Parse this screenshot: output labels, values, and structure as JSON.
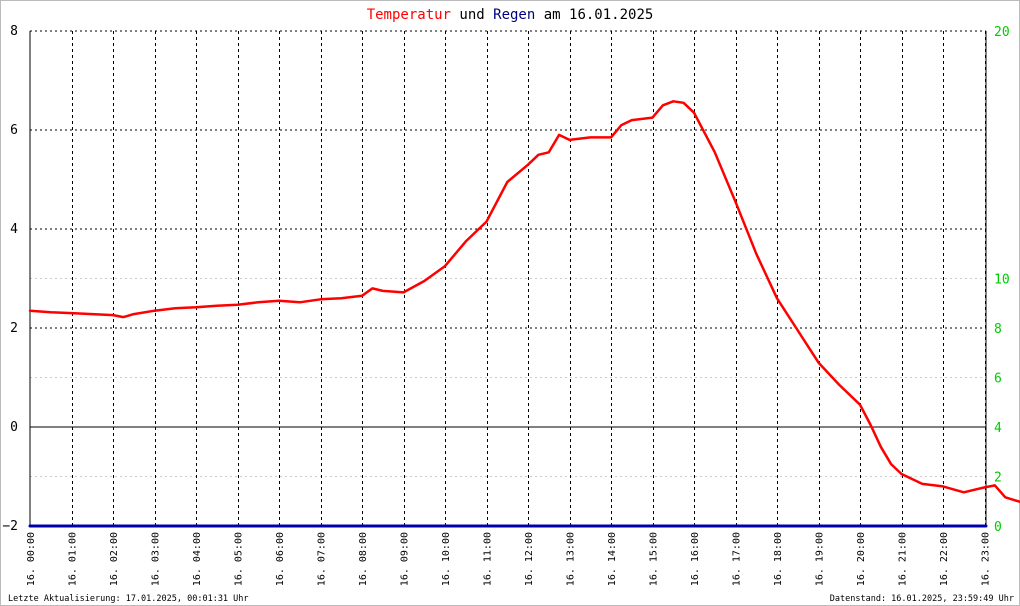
{
  "title": {
    "part1": "Temperatur",
    "part2": " und ",
    "part3": "Regen",
    "part4": " am 16.01.2025"
  },
  "footer": {
    "left": "Letzte Aktualisierung: 17.01.2025, 00:01:31 Uhr",
    "right": "Datenstand: 16.01.2025, 23:59:49 Uhr"
  },
  "colors": {
    "temperature": "#ff0000",
    "rain": "#0000aa",
    "right_axis": "#00cc00",
    "title_temperature": "#ff0000",
    "title_rain": "#000080"
  },
  "chart_data": {
    "type": "line",
    "title": "Temperatur und Regen am 16.01.2025",
    "x_tick_labels": [
      "16. 00:00",
      "16. 01:00",
      "16. 02:00",
      "16. 03:00",
      "16. 04:00",
      "16. 05:00",
      "16. 06:00",
      "16. 07:00",
      "16. 08:00",
      "16. 09:00",
      "16. 10:00",
      "16. 11:00",
      "16. 12:00",
      "16. 13:00",
      "16. 14:00",
      "16. 15:00",
      "16. 16:00",
      "16. 17:00",
      "16. 18:00",
      "16. 19:00",
      "16. 20:00",
      "16. 21:00",
      "16. 22:00",
      "16. 23:00"
    ],
    "y_left": {
      "ylim": [
        -2,
        8
      ],
      "ticks": [
        -2,
        0,
        2,
        4,
        6,
        8
      ]
    },
    "y_right": {
      "ylim": [
        0,
        20
      ],
      "ticks": [
        0,
        2,
        4,
        6,
        8,
        10,
        20
      ]
    },
    "grid": true,
    "series": [
      {
        "name": "Temperatur",
        "axis": "left",
        "x": [
          0,
          0.5,
          1,
          1.5,
          2,
          2.25,
          2.5,
          3,
          3.5,
          4,
          4.5,
          5,
          5.5,
          6,
          6.5,
          7,
          7.5,
          8,
          8.25,
          8.5,
          9,
          9.5,
          10,
          10.5,
          11,
          11.5,
          12,
          12.25,
          12.5,
          12.75,
          13,
          13.5,
          14,
          14.25,
          14.5,
          15,
          15.25,
          15.5,
          15.75,
          16,
          16.5,
          17,
          17.5,
          18,
          18.5,
          19,
          19.5,
          20,
          20.25,
          20.5,
          20.75,
          21,
          21.5,
          22,
          22.5,
          23,
          23.25,
          23.5,
          24
        ],
        "values": [
          2.35,
          2.32,
          2.3,
          2.28,
          2.26,
          2.22,
          2.28,
          2.35,
          2.4,
          2.42,
          2.45,
          2.47,
          2.52,
          2.55,
          2.52,
          2.58,
          2.6,
          2.65,
          2.8,
          2.75,
          2.72,
          2.95,
          3.25,
          3.75,
          4.15,
          4.95,
          5.3,
          5.5,
          5.55,
          5.9,
          5.8,
          5.85,
          5.85,
          6.1,
          6.2,
          6.25,
          6.5,
          6.58,
          6.55,
          6.35,
          5.55,
          4.55,
          3.5,
          2.6,
          1.95,
          1.3,
          0.85,
          0.45,
          0.05,
          -0.4,
          -0.75,
          -0.95,
          -1.15,
          -1.2,
          -1.32,
          -1.22,
          -1.18,
          -1.42,
          -1.55
        ]
      },
      {
        "name": "Regen",
        "axis": "right",
        "x": [
          0,
          24
        ],
        "values": [
          0,
          0
        ]
      }
    ]
  }
}
